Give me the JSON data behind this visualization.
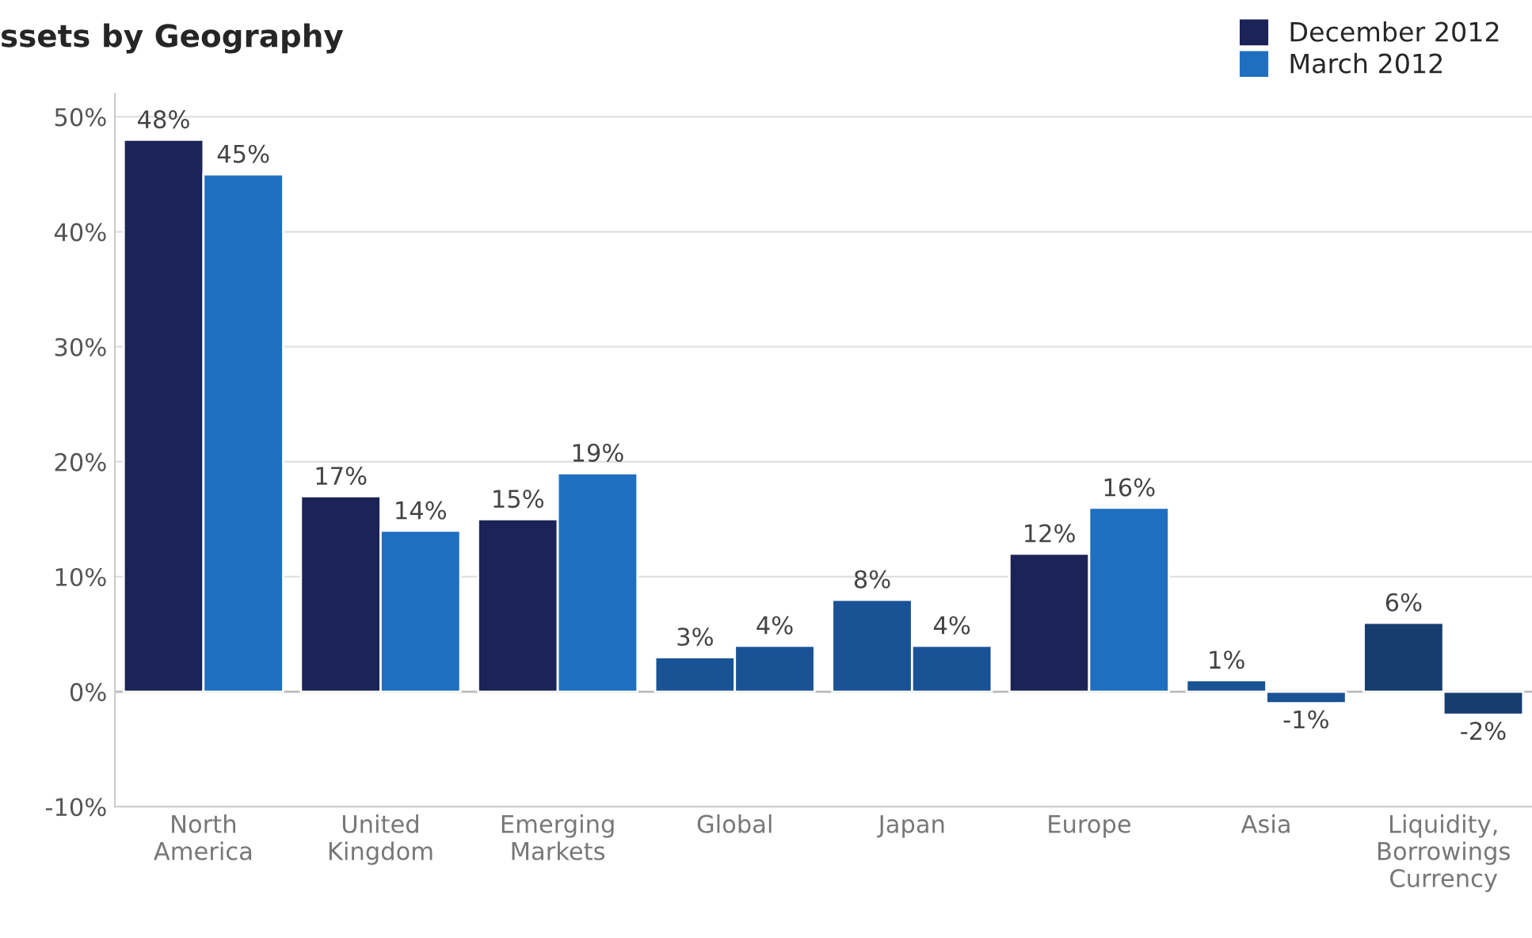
{
  "chart_data": {
    "type": "bar",
    "title": "ssets by Geography",
    "categories": [
      "North\nAmerica",
      "United\nKingdom",
      "Emerging\nMarkets",
      "Global",
      "Japan",
      "Europe",
      "Asia",
      "Liquidity,\nBorrowings\nCurrency"
    ],
    "series": [
      {
        "name": "December 2012",
        "color": "#1c2356",
        "colors": [
          "#1c2356",
          "#1c2356",
          "#1c2356",
          "#1a5296",
          "#1a5296",
          "#1c2356",
          "#1a5296",
          "#173d6e"
        ],
        "values": [
          48,
          17,
          15,
          3,
          8,
          12,
          1,
          6
        ],
        "value_labels": [
          "48%",
          "17%",
          "15%",
          "3%",
          "8%",
          "12%",
          "1%",
          "6%"
        ]
      },
      {
        "name": "March 2012",
        "color": "#1f6fc0",
        "colors": [
          "#1f6fc0",
          "#1f6fc0",
          "#1f6fc0",
          "#1a5296",
          "#1a5296",
          "#1f6fc0",
          "#1a5296",
          "#173d6e"
        ],
        "values": [
          45,
          14,
          19,
          4,
          4,
          16,
          -1,
          -2
        ],
        "value_labels": [
          "45%",
          "14%",
          "19%",
          "4%",
          "4%",
          "16%",
          "-1%",
          "-2%"
        ]
      }
    ],
    "ylim": [
      -10,
      52
    ],
    "yticks": [
      {
        "value": -10,
        "label": "-10%"
      },
      {
        "value": 0,
        "label": "0%"
      },
      {
        "value": 10,
        "label": "10%"
      },
      {
        "value": 20,
        "label": "20%"
      },
      {
        "value": 30,
        "label": "30%"
      },
      {
        "value": 40,
        "label": "40%"
      },
      {
        "value": 50,
        "label": "50%"
      }
    ],
    "grid": "y",
    "legend": "top right"
  }
}
